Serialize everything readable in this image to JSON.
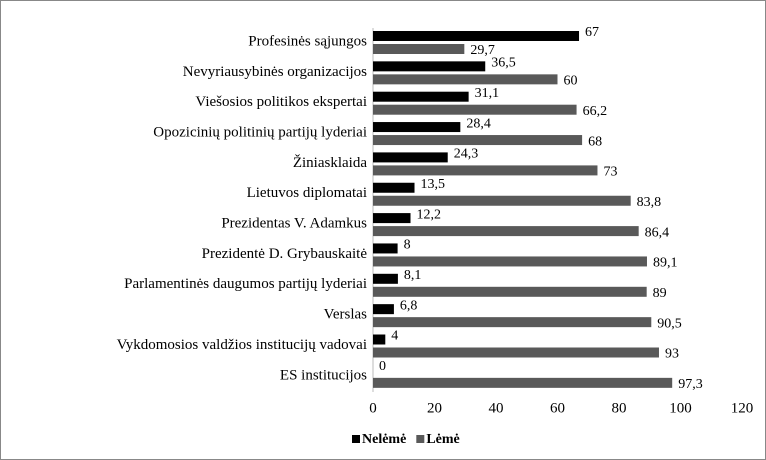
{
  "chart_data": {
    "type": "hbar",
    "categories": [
      "Profesinės sąjungos",
      "Nevyriausybinės organizacijos",
      "Viešosios politikos ekspertai",
      "Opozicinių politinių partijų lyderiai",
      "Žiniasklaida",
      "Lietuvos diplomatai",
      "Prezidentas V. Adamkus",
      "Prezidentė D. Grybauskaitė",
      "Parlamentinės daugumos partijų lyderiai",
      "Verslas",
      "Vykdomosios valdžios institucijų vadovai",
      "ES institucijos"
    ],
    "series": [
      {
        "name": "Nelėmė",
        "color": "#000000",
        "values": [
          67,
          36.5,
          31.1,
          28.4,
          24.3,
          13.5,
          12.2,
          8,
          8.1,
          6.8,
          4,
          0
        ],
        "value_labels": [
          "67",
          "36,5",
          "31,1",
          "28,4",
          "24,3",
          "13,5",
          "12,2",
          "8",
          "8,1",
          "6,8",
          "4",
          "0"
        ]
      },
      {
        "name": "Lėmė",
        "color": "#595959",
        "values": [
          29.7,
          60,
          66.2,
          68,
          73,
          83.8,
          86.4,
          89.1,
          89,
          90.5,
          93,
          97.3
        ],
        "value_labels": [
          "29,7",
          "60",
          "66,2",
          "68",
          "73",
          "83,8",
          "86,4",
          "89,1",
          "89",
          "90,5",
          "93",
          "97,3"
        ]
      }
    ],
    "xlim": [
      0,
      120
    ],
    "xticks": [
      0,
      20,
      40,
      60,
      80,
      100,
      120
    ],
    "legend": "bottom"
  }
}
